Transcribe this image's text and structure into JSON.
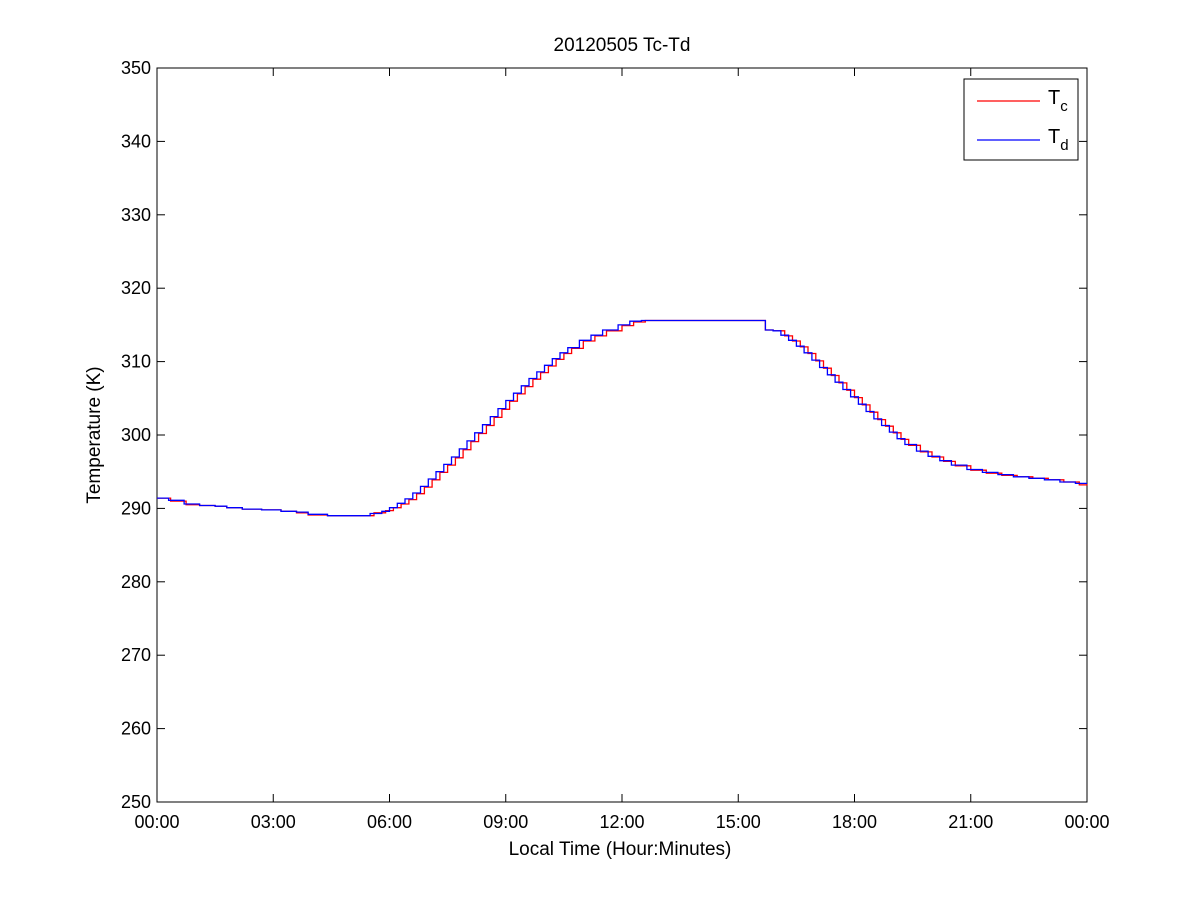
{
  "chart_data": {
    "type": "line",
    "title": "20120505 Tc-Td",
    "xlabel": "Local Time (Hour:Minutes)",
    "ylabel": "Temperature (K)",
    "xlim": [
      0,
      24
    ],
    "ylim": [
      250,
      350
    ],
    "x_ticks": [
      0,
      3,
      6,
      9,
      12,
      15,
      18,
      21,
      24
    ],
    "x_tick_labels": [
      "00:00",
      "03:00",
      "06:00",
      "09:00",
      "12:00",
      "15:00",
      "18:00",
      "21:00",
      "00:00"
    ],
    "y_ticks": [
      250,
      260,
      270,
      280,
      290,
      300,
      310,
      320,
      330,
      340,
      350
    ],
    "y_tick_labels": [
      "250",
      "260",
      "270",
      "280",
      "290",
      "300",
      "310",
      "320",
      "330",
      "340",
      "350"
    ],
    "grid": false,
    "legend_position": "top-right",
    "line_shape": "step",
    "series": [
      {
        "name": "Tc",
        "legend_main": "T",
        "legend_sub": "c",
        "color": "#ff0000",
        "x": [
          0,
          0.35,
          0.75,
          1.1,
          1.5,
          1.8,
          2.2,
          2.7,
          3.2,
          3.6,
          3.9,
          4.4,
          5.0,
          5.6,
          5.9,
          6.1,
          6.3,
          6.5,
          6.7,
          6.9,
          7.1,
          7.3,
          7.5,
          7.7,
          7.9,
          8.1,
          8.3,
          8.5,
          8.7,
          8.9,
          9.1,
          9.3,
          9.5,
          9.7,
          9.9,
          10.1,
          10.3,
          10.5,
          10.7,
          11.0,
          11.3,
          11.6,
          12.0,
          12.3,
          12.6,
          13.0,
          13.5,
          14.0,
          14.5,
          15.0,
          15.5,
          15.7,
          15.9,
          16.2,
          16.4,
          16.6,
          16.8,
          17.0,
          17.2,
          17.4,
          17.6,
          17.8,
          18.0,
          18.2,
          18.4,
          18.6,
          18.8,
          19.0,
          19.2,
          19.4,
          19.7,
          20.0,
          20.3,
          20.6,
          21.0,
          21.4,
          21.8,
          22.2,
          22.6,
          23.0,
          23.4,
          23.8,
          24.0
        ],
        "y": [
          291.4,
          291.0,
          290.5,
          290.4,
          290.3,
          290.1,
          289.9,
          289.8,
          289.6,
          289.4,
          289.1,
          289.0,
          289.0,
          289.4,
          289.7,
          290.1,
          290.6,
          291.2,
          292.0,
          292.9,
          293.9,
          294.9,
          295.9,
          296.9,
          298.0,
          299.1,
          300.2,
          301.3,
          302.4,
          303.5,
          304.6,
          305.6,
          306.6,
          307.6,
          308.5,
          309.4,
          310.3,
          311.1,
          311.8,
          312.8,
          313.5,
          314.2,
          314.9,
          315.4,
          315.6,
          315.6,
          315.6,
          315.6,
          315.6,
          315.6,
          315.6,
          314.3,
          314.2,
          313.5,
          312.8,
          312.0,
          311.1,
          310.1,
          309.1,
          308.1,
          307.1,
          306.1,
          305.1,
          304.1,
          303.1,
          302.1,
          301.2,
          300.3,
          299.4,
          298.6,
          297.7,
          297.0,
          296.4,
          295.8,
          295.2,
          294.8,
          294.5,
          294.3,
          294.1,
          293.9,
          293.6,
          293.2,
          293.3
        ]
      },
      {
        "name": "Td",
        "legend_main": "T",
        "legend_sub": "d",
        "color": "#0000ff",
        "x": [
          0,
          0.3,
          0.7,
          1.1,
          1.5,
          1.8,
          2.2,
          2.7,
          3.2,
          3.6,
          3.9,
          4.4,
          5.0,
          5.5,
          5.8,
          6.0,
          6.2,
          6.4,
          6.6,
          6.8,
          7.0,
          7.2,
          7.4,
          7.6,
          7.8,
          8.0,
          8.2,
          8.4,
          8.6,
          8.8,
          9.0,
          9.2,
          9.4,
          9.6,
          9.8,
          10.0,
          10.2,
          10.4,
          10.6,
          10.9,
          11.2,
          11.5,
          11.9,
          12.2,
          12.5,
          13.0,
          13.5,
          14.0,
          14.5,
          15.0,
          15.4,
          15.7,
          15.9,
          16.1,
          16.3,
          16.5,
          16.7,
          16.9,
          17.1,
          17.3,
          17.5,
          17.7,
          17.9,
          18.1,
          18.3,
          18.5,
          18.7,
          18.9,
          19.1,
          19.3,
          19.6,
          19.9,
          20.2,
          20.5,
          20.9,
          21.3,
          21.7,
          22.1,
          22.5,
          22.9,
          23.3,
          23.7,
          24.0
        ],
        "y": [
          291.4,
          291.1,
          290.6,
          290.4,
          290.3,
          290.1,
          289.9,
          289.8,
          289.6,
          289.5,
          289.2,
          289.0,
          289.0,
          289.3,
          289.6,
          290.1,
          290.7,
          291.3,
          292.1,
          293.0,
          294.0,
          295.0,
          296.0,
          297.0,
          298.1,
          299.2,
          300.3,
          301.4,
          302.5,
          303.6,
          304.7,
          305.7,
          306.7,
          307.7,
          308.6,
          309.5,
          310.4,
          311.2,
          311.9,
          312.9,
          313.6,
          314.3,
          315.0,
          315.5,
          315.6,
          315.6,
          315.6,
          315.6,
          315.6,
          315.6,
          315.6,
          314.3,
          314.2,
          313.6,
          312.9,
          312.1,
          311.2,
          310.2,
          309.2,
          308.2,
          307.2,
          306.2,
          305.2,
          304.2,
          303.2,
          302.2,
          301.3,
          300.4,
          299.5,
          298.7,
          297.8,
          297.1,
          296.5,
          295.9,
          295.3,
          294.9,
          294.6,
          294.3,
          294.1,
          293.9,
          293.6,
          293.4,
          293.4
        ]
      }
    ]
  }
}
